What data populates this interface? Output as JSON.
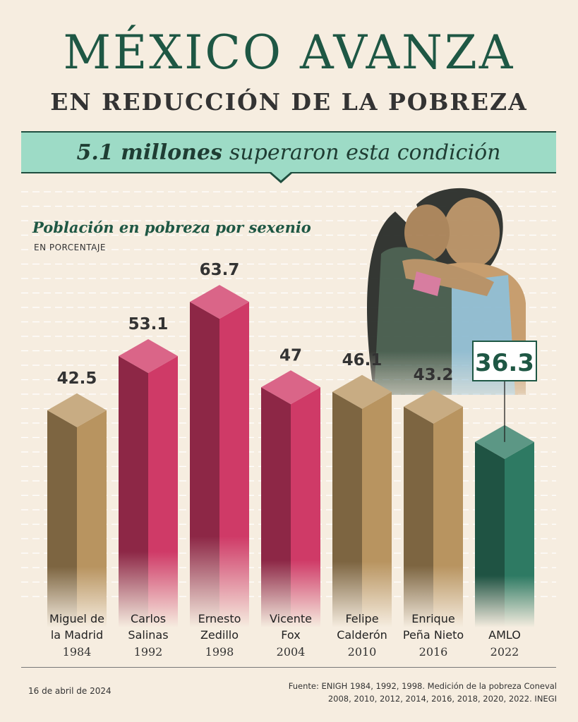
{
  "header": {
    "title": "MÉXICO AVANZA",
    "subtitle": "EN REDUCCIÓN DE LA POBREZA",
    "banner_bold": "5.1 millones",
    "banner_rest": "superaron esta condición"
  },
  "chart_data": {
    "type": "bar",
    "title": "Población en pobreza por sexenio",
    "unit": "EN PORCENTAJE",
    "categories": [
      {
        "name": [
          "Miguel de",
          "la Madrid"
        ],
        "year": "1984"
      },
      {
        "name": [
          "Carlos",
          "Salinas"
        ],
        "year": "1992"
      },
      {
        "name": [
          "Ernesto",
          "Zedillo"
        ],
        "year": "1998"
      },
      {
        "name": [
          "Vicente",
          "Fox"
        ],
        "year": "2004"
      },
      {
        "name": [
          "Felipe",
          "Calderón"
        ],
        "year": "2010"
      },
      {
        "name": [
          "Enrique",
          "Peña Nieto"
        ],
        "year": "2016"
      },
      {
        "name": [
          "AMLO"
        ],
        "year": "2022"
      }
    ],
    "values": [
      42.5,
      53.1,
      63.7,
      47,
      46.1,
      43.2,
      36.3
    ],
    "value_labels": [
      "42.5",
      "53.1",
      "63.7",
      "47",
      "46.1",
      "43.2",
      "36.3"
    ],
    "highlight_index": 6,
    "bar_colors": [
      "#b89460",
      "#cf3a67",
      "#cf3a67",
      "#cf3a67",
      "#b89460",
      "#b89460",
      "#2e7a63"
    ],
    "ylim": [
      0,
      70
    ]
  },
  "footer": {
    "date": "16 de abril de 2024",
    "source_line1": "Fuente: ENIGH 1984, 1992, 1998. Medición de la pobreza Coneval",
    "source_line2": "2008, 2010, 2012, 2014, 2016, 2018, 2020, 2022. INEGI"
  },
  "colors": {
    "background": "#f6ede0",
    "title_green": "#1e5744",
    "banner": "#9ddbc6"
  }
}
